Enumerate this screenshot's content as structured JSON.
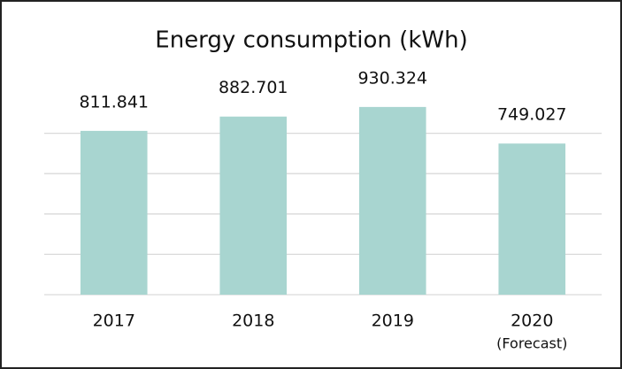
{
  "chart_data": {
    "type": "bar",
    "title": "Energy consumption (kWh)",
    "categories": [
      "2017",
      "2018",
      "2019",
      "2020"
    ],
    "values": [
      811.841,
      882.701,
      930.324,
      749.027
    ],
    "annotation": "(Forecast)",
    "color": "#a8d5d0",
    "ylim": [
      0,
      1000
    ],
    "yticks": [
      0,
      200,
      400,
      600,
      800
    ],
    "grid": true
  }
}
